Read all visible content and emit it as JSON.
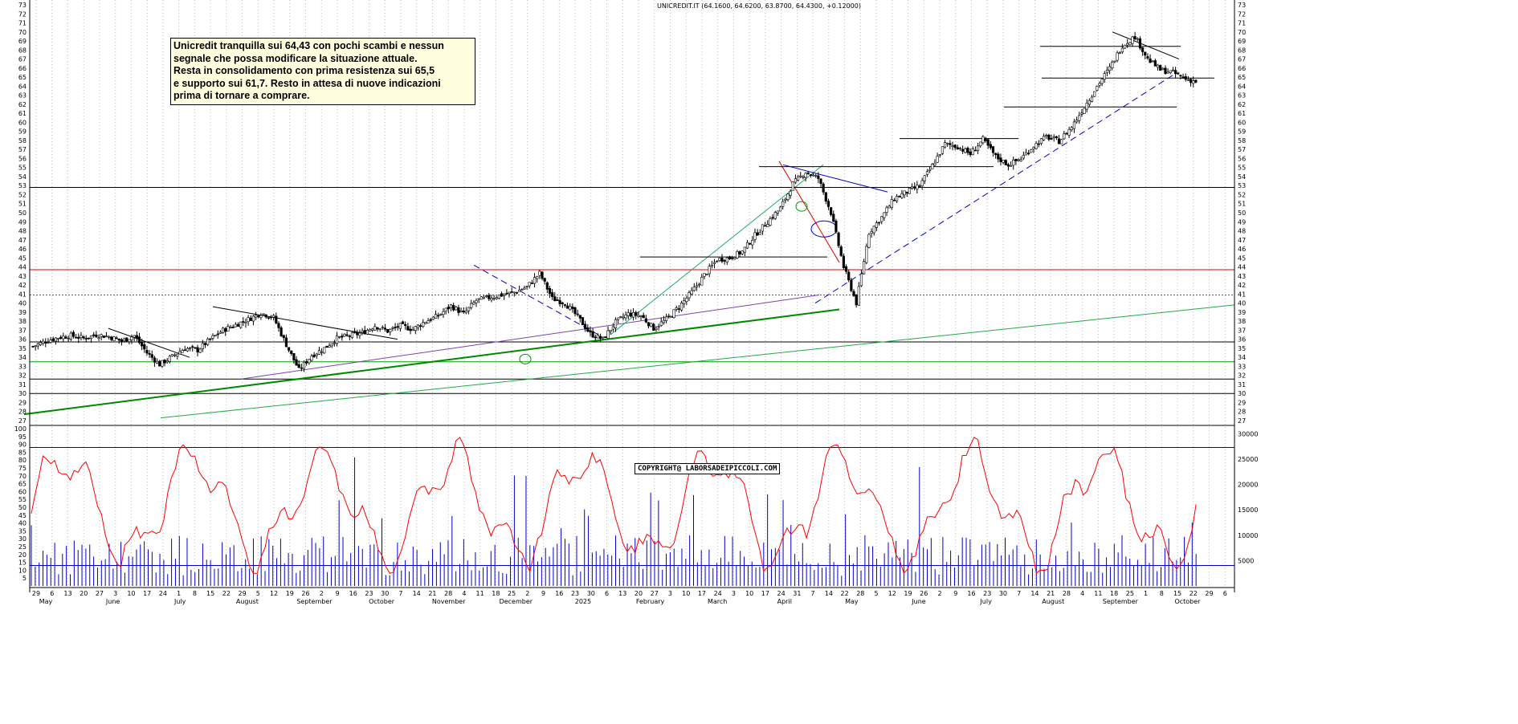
{
  "header": {
    "title": "UNICREDIT.IT (64.1600, 64.6200, 63.8700, 64.4300, +0.12000)"
  },
  "comment": {
    "text": "Unicredit tranquilla sui 64,43 con pochi scambi e nessun\nsegnale che possa modificare la situazione attuale.\nResta in consolidamento con prima resistenza sui 65,5\ne supporto sui 61,7. Resto in attesa di nuove indicazioni\nprima di tornare a comprare."
  },
  "copyright": {
    "text": "COPYRIGHT@ LABORSADEIPICCOLI.COM"
  },
  "colors": {
    "price": "#000000",
    "support_red": "#e00000",
    "green": "#008800",
    "blue": "#0000cc",
    "rsi": "#ff0000",
    "volume": "#0000cc"
  },
  "chart_data": [
    {
      "type": "candlestick",
      "title": "UNICREDIT.IT (64.1600, 64.6200, 63.8700, 64.4300, +0.12000)",
      "last": {
        "open": 64.16,
        "high": 64.62,
        "low": 63.87,
        "close": 64.43,
        "change": 0.12
      },
      "ylim": [
        27,
        73
      ],
      "yticks": [
        27,
        28,
        29,
        30,
        31,
        32,
        33,
        34,
        35,
        36,
        37,
        38,
        39,
        40,
        41,
        42,
        43,
        44,
        45,
        46,
        47,
        48,
        49,
        50,
        51,
        52,
        53,
        54,
        55,
        56,
        57,
        58,
        59,
        60,
        61,
        62,
        63,
        64,
        65,
        66,
        67,
        68,
        69,
        70,
        71,
        72,
        73
      ],
      "x_day_labels": [
        "29",
        "6",
        "13",
        "20",
        "27",
        "3",
        "10",
        "17",
        "24",
        "1",
        "8",
        "15",
        "22",
        "29",
        "5",
        "12",
        "19",
        "26",
        "2",
        "9",
        "16",
        "23",
        "30",
        "7",
        "14",
        "21",
        "28",
        "4",
        "11",
        "18",
        "25",
        "2",
        "9",
        "16",
        "23",
        "30",
        "6",
        "13",
        "20",
        "27",
        "3",
        "10",
        "17",
        "24",
        "3",
        "10",
        "17",
        "24",
        "31",
        "7",
        "14",
        "22",
        "28",
        "5",
        "12",
        "19",
        "26",
        "2",
        "9",
        "16",
        "23",
        "30",
        "7",
        "14",
        "21",
        "28",
        "4",
        "11",
        "18",
        "25",
        "1",
        "8",
        "15",
        "22",
        "29",
        "6"
      ],
      "x_month_labels": [
        "May",
        "June",
        "July",
        "August",
        "September",
        "October",
        "November",
        "December",
        "2025",
        "February",
        "March",
        "April",
        "May",
        "June",
        "July",
        "August",
        "September",
        "October"
      ],
      "close_path": [
        35.2,
        35.8,
        36.2,
        36.4,
        36.1,
        36.5,
        36.3,
        35.8,
        36.4,
        34.5,
        33.2,
        34.1,
        35.0,
        34.8,
        36.0,
        37.0,
        37.6,
        38.2,
        38.9,
        38.4,
        35.4,
        32.6,
        34.2,
        35.0,
        36.1,
        36.4,
        36.7,
        37.5,
        36.9,
        37.5,
        37.1,
        38.0,
        38.6,
        39.7,
        38.8,
        40.3,
        40.6,
        40.9,
        41.2,
        41.8,
        43.3,
        40.5,
        40.0,
        38.5,
        36.6,
        36.0,
        37.9,
        38.8,
        38.6,
        37.2,
        38.2,
        39.6,
        41.2,
        43.1,
        44.8,
        45.0,
        45.7,
        47.5,
        49.0,
        50.5,
        53.2,
        54.5,
        53.8,
        50.0,
        44.0,
        40.0,
        47.8,
        49.5,
        51.6,
        52.3,
        53.0,
        55.2,
        57.6,
        57.3,
        56.5,
        58.1,
        56.2,
        55.3,
        56.0,
        57.4,
        58.4,
        57.9,
        59.5,
        61.7,
        64.0,
        66.0,
        68.5,
        69.5,
        67.0,
        65.8,
        65.5,
        64.8,
        64.43
      ],
      "horizontal_levels": [
        {
          "y": 30,
          "color": "black"
        },
        {
          "y": 31.6,
          "color": "black"
        },
        {
          "y": 33.5,
          "color": "green"
        },
        {
          "y": 35.7,
          "color": "black"
        },
        {
          "y": 40.9,
          "color": "green",
          "style": "dotted"
        },
        {
          "y": 43.7,
          "color": "red"
        },
        {
          "y": 52.8,
          "color": "black"
        }
      ]
    },
    {
      "type": "line+bar",
      "series": [
        {
          "values_desc": "RSI oscillator (red line)"
        },
        {
          "values_desc": "Volume (blue bars)"
        }
      ],
      "left_ylim": [
        0,
        100
      ],
      "left_yticks": [
        5,
        10,
        15,
        20,
        25,
        30,
        35,
        40,
        45,
        50,
        55,
        60,
        65,
        70,
        75,
        80,
        85,
        90,
        95,
        100
      ],
      "right_yticks": [
        5000,
        10000,
        15000,
        20000,
        25000,
        30000
      ],
      "reference_lines": [
        {
          "y": 88,
          "color": "blue"
        },
        {
          "y": 13,
          "color": "blue"
        }
      ]
    }
  ]
}
